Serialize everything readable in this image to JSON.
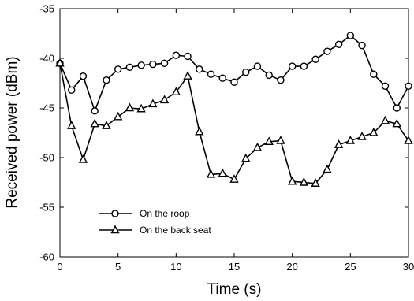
{
  "chart_data": {
    "type": "line",
    "xlabel": "Time (s)",
    "ylabel": "Received power (dBm)",
    "xlim": [
      0,
      30
    ],
    "ylim": [
      -60,
      -35
    ],
    "xticks": [
      0,
      5,
      10,
      15,
      20,
      25,
      30
    ],
    "yticks": [
      -60,
      -55,
      -50,
      -45,
      -40,
      -35
    ],
    "grid": false,
    "legend_position": "bottom-left",
    "series": [
      {
        "name": "On the roop",
        "marker": "circle",
        "x": [
          0,
          1,
          2,
          3,
          4,
          5,
          6,
          7,
          8,
          9,
          10,
          11,
          12,
          13,
          14,
          15,
          16,
          17,
          18,
          19,
          20,
          21,
          22,
          23,
          24,
          25,
          26,
          27,
          28,
          29,
          30
        ],
        "values": [
          -40.5,
          -43.2,
          -41.8,
          -45.3,
          -42.2,
          -41.1,
          -40.9,
          -40.7,
          -40.6,
          -40.5,
          -39.7,
          -39.8,
          -41.1,
          -41.6,
          -42.0,
          -42.4,
          -41.4,
          -40.8,
          -41.7,
          -42.2,
          -40.8,
          -40.8,
          -40.1,
          -39.3,
          -38.6,
          -37.7,
          -38.7,
          -41.6,
          -42.8,
          -45.0,
          -42.8
        ]
      },
      {
        "name": "On the back seat",
        "marker": "triangle",
        "x": [
          0,
          1,
          2,
          3,
          4,
          5,
          6,
          7,
          8,
          9,
          10,
          11,
          12,
          13,
          14,
          15,
          16,
          17,
          18,
          19,
          20,
          21,
          22,
          23,
          24,
          25,
          26,
          27,
          28,
          29,
          30
        ],
        "values": [
          -40.5,
          -46.8,
          -50.2,
          -46.6,
          -46.8,
          -45.9,
          -45.0,
          -45.1,
          -44.6,
          -44.2,
          -43.4,
          -41.8,
          -47.4,
          -51.7,
          -51.6,
          -52.2,
          -50.1,
          -49.0,
          -48.4,
          -48.3,
          -52.4,
          -52.5,
          -52.6,
          -51.2,
          -48.7,
          -48.3,
          -47.9,
          -47.5,
          -46.3,
          -46.6,
          -48.3
        ]
      }
    ]
  }
}
